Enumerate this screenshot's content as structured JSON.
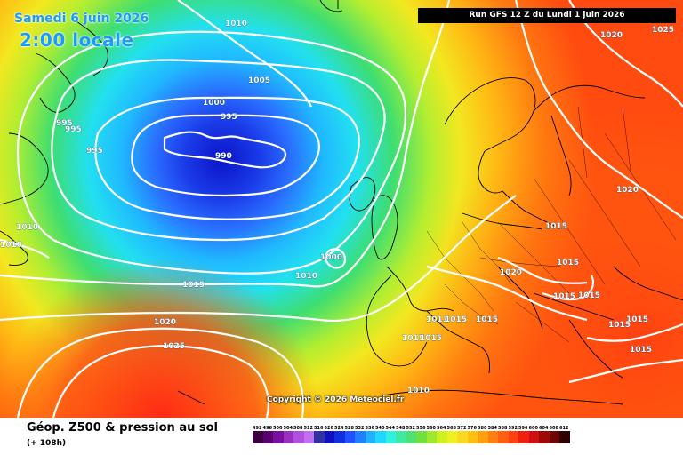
{
  "header": {
    "date_line": "Samedi 6 juin 2026",
    "time_line": "2:00 locale",
    "run_info": "Run GFS 12 Z du Lundi 1 juin 2026"
  },
  "map": {
    "isobar_labels": [
      "1010",
      "1005",
      "1000",
      "995",
      "995",
      "995",
      "995",
      "990",
      "1010",
      "1010",
      "1000",
      "1010",
      "1015",
      "1020",
      "1025",
      "1025",
      "1020",
      "1020",
      "1015",
      "1015",
      "1015",
      "1015",
      "1015",
      "1015",
      "1015",
      "1015",
      "1015",
      "1020",
      "1011",
      "1015",
      "1015",
      "1010",
      "1010",
      "1010"
    ],
    "copyright": "Copyright © 2026 Meteociel.fr",
    "colors": {
      "low_core": "#0a1fd0",
      "low_mid": "#2a5cff",
      "cyan": "#22c8ff",
      "green": "#44d96a",
      "yellow": "#f0e020",
      "orange": "#ff9a10",
      "red": "#ff3a10",
      "isobar": "#ffffff",
      "land_border": "#000000"
    }
  },
  "footer": {
    "title": "Géop. Z500 & pression au sol",
    "subtitle": "(+ 108h)",
    "scale_labels": [
      "492",
      "496",
      "500",
      "504",
      "508",
      "512",
      "516",
      "520",
      "524",
      "528",
      "532",
      "536",
      "540",
      "544",
      "548",
      "552",
      "556",
      "560",
      "564",
      "568",
      "572",
      "576",
      "580",
      "584",
      "588",
      "592",
      "596",
      "600",
      "604",
      "608",
      "612"
    ],
    "scale_colors": [
      "#3a0040",
      "#5a0070",
      "#7a10a0",
      "#9a30c0",
      "#b050e0",
      "#c070f0",
      "#3030a0",
      "#1010c0",
      "#1030e0",
      "#2050ff",
      "#2080ff",
      "#20b0ff",
      "#20d8ff",
      "#30f0e0",
      "#40e8a0",
      "#50e070",
      "#70e040",
      "#a0e830",
      "#d0f020",
      "#f0f020",
      "#f8d820",
      "#ffc010",
      "#ffa010",
      "#ff8010",
      "#ff6010",
      "#ff4010",
      "#f02010",
      "#d01010",
      "#a00808",
      "#700404",
      "#300000"
    ]
  }
}
